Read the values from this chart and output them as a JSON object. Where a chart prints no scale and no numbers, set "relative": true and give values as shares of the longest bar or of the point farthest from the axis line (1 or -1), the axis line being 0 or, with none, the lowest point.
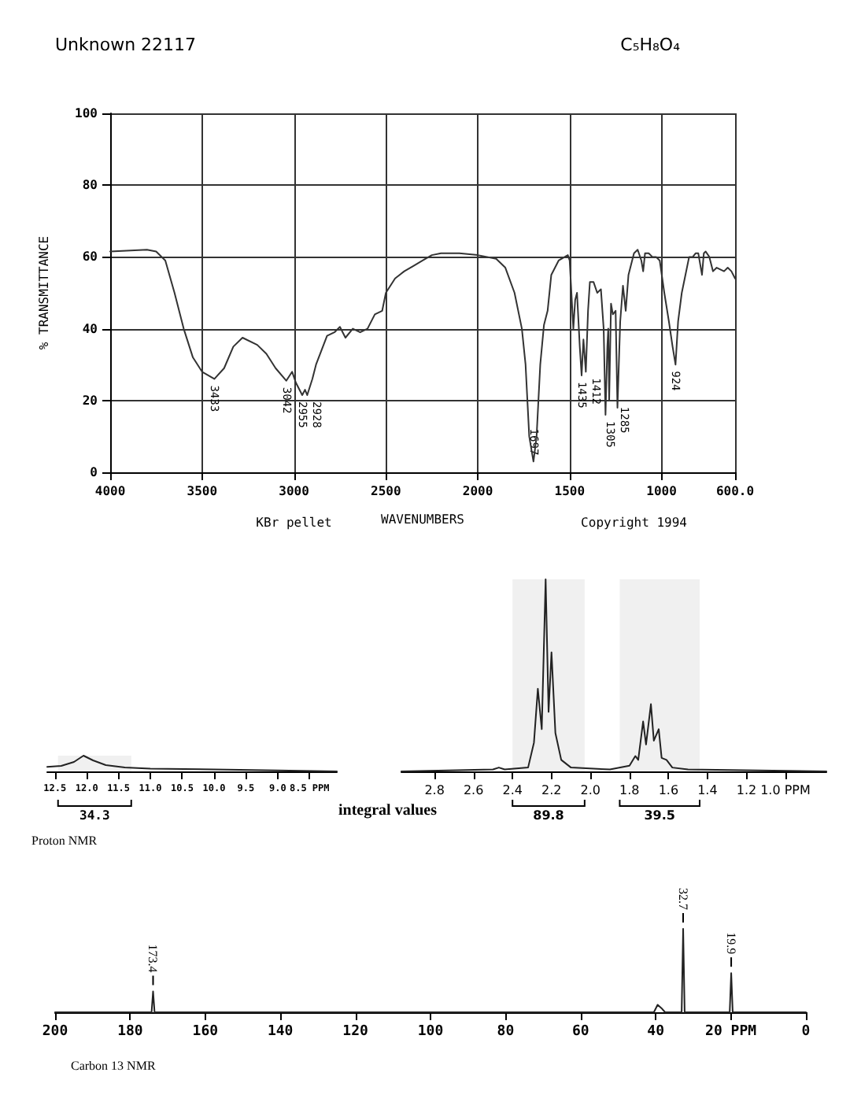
{
  "chart_data": [
    {
      "type": "line",
      "title": "Unknown 22117",
      "subtitle": "C₅H₈O₄",
      "xlabel": "WAVENUMBERS",
      "ylabel": "% TRANSMITTANCE",
      "color": "#333333",
      "grid": true,
      "xlim": [
        4000,
        600
      ],
      "ylim": [
        0,
        100
      ],
      "xticks": [
        4000,
        3500,
        3000,
        2500,
        2000,
        1500,
        1000,
        {
          "value": 600,
          "label": "600.0"
        }
      ],
      "yticks": [
        0,
        20,
        40,
        60,
        80,
        100
      ],
      "x": [
        4000,
        3800,
        3750,
        3700,
        3650,
        3600,
        3550,
        3500,
        3433,
        3380,
        3330,
        3280,
        3200,
        3150,
        3100,
        3042,
        3010,
        2990,
        2955,
        2940,
        2928,
        2900,
        2880,
        2850,
        2820,
        2780,
        2750,
        2720,
        2680,
        2640,
        2600,
        2560,
        2520,
        2500,
        2450,
        2400,
        2350,
        2300,
        2250,
        2200,
        2100,
        2000,
        1900,
        1850,
        1800,
        1760,
        1740,
        1720,
        1697,
        1680,
        1660,
        1640,
        1620,
        1600,
        1560,
        1510,
        1500,
        1480,
        1470,
        1460,
        1445,
        1435,
        1425,
        1412,
        1400,
        1390,
        1370,
        1350,
        1330,
        1315,
        1305,
        1295,
        1290,
        1285,
        1275,
        1265,
        1250,
        1240,
        1225,
        1210,
        1195,
        1180,
        1150,
        1130,
        1110,
        1100,
        1090,
        1070,
        1050,
        1030,
        1010,
        985,
        960,
        940,
        924,
        910,
        890,
        870,
        850,
        830,
        815,
        800,
        780,
        770,
        760,
        740,
        720,
        700,
        680,
        660,
        640,
        620,
        600
      ],
      "values": [
        61.5,
        62,
        61.5,
        59,
        50,
        40,
        32,
        28,
        26,
        29,
        35,
        37.5,
        35.5,
        33,
        29,
        25.5,
        28,
        25,
        21.5,
        23,
        21.5,
        26,
        30,
        34,
        38,
        39,
        40.5,
        37.5,
        40,
        39,
        40,
        44,
        45,
        50,
        54,
        56,
        57.5,
        59,
        60.5,
        61,
        61,
        60.5,
        59.5,
        57,
        50,
        40,
        30,
        10,
        3,
        10,
        30,
        41,
        45,
        55,
        59,
        60.5,
        59,
        40,
        48,
        50,
        35,
        27,
        37,
        28,
        45,
        53,
        53,
        50,
        51,
        40,
        16,
        35,
        40,
        20,
        47,
        44,
        45,
        18,
        42,
        52,
        45,
        55,
        61,
        62,
        59,
        56,
        61,
        61,
        60,
        60,
        59,
        50,
        42,
        35,
        30,
        42,
        50,
        55,
        60,
        60,
        61,
        61,
        55,
        61,
        61.5,
        60,
        56,
        57,
        56.5,
        56,
        57,
        56,
        54
      ],
      "annotations": [
        {
          "text": "3433",
          "x": 3433,
          "y": 26
        },
        {
          "text": "3042",
          "x": 3042,
          "y": 25.5
        },
        {
          "text": "2955",
          "x": 2955,
          "y": 21.5
        },
        {
          "text": "2928",
          "x": 2928,
          "y": 21.5
        },
        {
          "text": "1697",
          "x": 1697,
          "y": 3
        },
        {
          "text": "1435",
          "x": 1435,
          "y": 27
        },
        {
          "text": "1412",
          "x": 1412,
          "y": 28
        },
        {
          "text": "1305",
          "x": 1305,
          "y": 16
        },
        {
          "text": "1285",
          "x": 1285,
          "y": 20
        },
        {
          "text": "924",
          "x": 924,
          "y": 30
        },
        "KBr pellet",
        "Copyright 1994"
      ]
    },
    {
      "type": "line",
      "relative": true,
      "tick_labels": "x",
      "color": "#222222",
      "xlim": [
        12.62,
        8.07
      ],
      "xticks": [
        12.5,
        {
          "value": 12,
          "label": "12.0"
        },
        11.5,
        {
          "value": 11,
          "label": "11.0"
        },
        10.5,
        {
          "value": 10,
          "label": "10.0"
        },
        9.5,
        {
          "value": 9,
          "label": "9.0"
        },
        {
          "value": 8.5,
          "label": "8.5 PPM"
        }
      ],
      "x": [
        12.62,
        12.4,
        12.2,
        12.05,
        11.9,
        11.7,
        11.4,
        11.0,
        10.0,
        9.0,
        8.07
      ],
      "values": [
        0.29,
        0.35,
        0.6,
        1,
        0.7,
        0.4,
        0.25,
        0.18,
        0.12,
        0.06,
        0
      ],
      "bands": [
        {
          "axis": "x",
          "from": 12.45,
          "to": 11.3,
          "label": "34.3"
        }
      ],
      "annotations": [
        "Proton NMR"
      ]
    },
    {
      "type": "line",
      "relative": true,
      "tick_labels": "x",
      "color": "#222222",
      "xlim": [
        2.97,
        0.79
      ],
      "xticks": [
        2.8,
        2.6,
        2.4,
        2.2,
        {
          "value": 2,
          "label": "2.0"
        },
        1.8,
        1.6,
        1.4,
        1.2,
        {
          "value": 1,
          "label": "1.0 PPM"
        }
      ],
      "x": [
        2.97,
        2.5,
        2.47,
        2.44,
        2.32,
        2.29,
        2.27,
        2.25,
        2.23,
        2.215,
        2.2,
        2.18,
        2.15,
        2.1,
        1.9,
        1.8,
        1.77,
        1.755,
        1.73,
        1.715,
        1.69,
        1.675,
        1.65,
        1.635,
        1.61,
        1.58,
        1.5,
        0.79
      ],
      "values": [
        0,
        0.01,
        0.02,
        0.01,
        0.02,
        0.15,
        0.43,
        0.22,
        1,
        0.31,
        0.62,
        0.2,
        0.06,
        0.02,
        0.01,
        0.03,
        0.08,
        0.06,
        0.26,
        0.14,
        0.35,
        0.16,
        0.22,
        0.07,
        0.06,
        0.02,
        0.01,
        0
      ],
      "bands": [
        {
          "axis": "x",
          "from": 2.4,
          "to": 2.03,
          "label": "89.8"
        },
        {
          "axis": "x",
          "from": 1.85,
          "to": 1.44,
          "label": "39.5"
        }
      ],
      "annotations": [
        "integral values"
      ]
    },
    {
      "type": "line",
      "relative": true,
      "tick_labels": "x",
      "color": "#222222",
      "xlim": [
        200,
        0
      ],
      "xticks": [
        200,
        180,
        160,
        140,
        120,
        100,
        80,
        60,
        40,
        {
          "value": 20,
          "label": "20 PPM"
        },
        0
      ],
      "x": [
        200,
        174.3,
        173.9,
        173.5,
        40.5,
        39.5,
        38.5,
        37.5,
        33.1,
        32.7,
        32.3,
        20.3,
        19.9,
        19.5,
        0
      ],
      "values": [
        0,
        0,
        0.25,
        0,
        0,
        0.09,
        0.05,
        0,
        0,
        1,
        0,
        0,
        0.47,
        0,
        0
      ],
      "annotations": [
        {
          "text": "173.4",
          "x": 173.9,
          "y": 0.25
        },
        {
          "text": "32.7",
          "x": 32.7,
          "y": 1
        },
        {
          "text": "19.9",
          "x": 19.9,
          "y": 0.47
        },
        "Carbon 13 NMR"
      ]
    }
  ]
}
